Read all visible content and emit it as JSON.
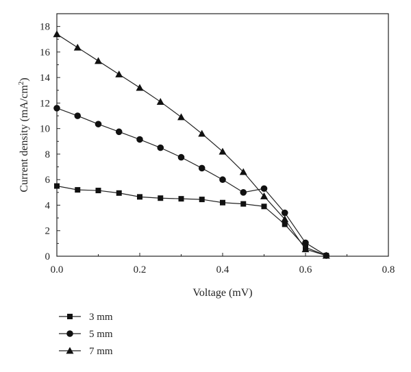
{
  "chart_data": {
    "type": "line",
    "title": "",
    "xlabel": "Voltage (mV)",
    "ylabel_main": "Current density (mA/cm",
    "ylabel_sup": "2",
    "ylabel_close": ")",
    "xlim": [
      0,
      0.8
    ],
    "ylim": [
      0,
      19
    ],
    "xticks": [
      0.0,
      0.2,
      0.4,
      0.6,
      0.8
    ],
    "xtick_labels": [
      "0.0",
      "0.2",
      "0.4",
      "0.6",
      "0.8"
    ],
    "yticks": [
      0,
      2,
      4,
      6,
      8,
      10,
      12,
      14,
      16,
      18
    ],
    "ytick_labels": [
      "0",
      "2",
      "4",
      "6",
      "8",
      "10",
      "12",
      "14",
      "16",
      "18"
    ],
    "grid": false,
    "legend_position": "bottom-left, below plot",
    "series": [
      {
        "name": "3 mm",
        "marker": "square",
        "x": [
          0,
          0.05,
          0.1,
          0.15,
          0.2,
          0.25,
          0.3,
          0.35,
          0.4,
          0.45,
          0.5,
          0.55,
          0.6,
          0.65
        ],
        "y": [
          5.5,
          5.2,
          5.15,
          4.95,
          4.65,
          4.55,
          4.5,
          4.45,
          4.2,
          4.1,
          3.9,
          2.5,
          0.7,
          0.05
        ]
      },
      {
        "name": "5 mm",
        "marker": "circle",
        "x": [
          0,
          0.05,
          0.1,
          0.15,
          0.2,
          0.25,
          0.3,
          0.35,
          0.4,
          0.45,
          0.5,
          0.55,
          0.6,
          0.65
        ],
        "y": [
          11.6,
          11.0,
          10.35,
          9.75,
          9.15,
          8.5,
          7.75,
          6.9,
          6.0,
          5.0,
          5.3,
          3.4,
          1.05,
          0.05
        ]
      },
      {
        "name": "7 mm",
        "marker": "triangle",
        "x": [
          0,
          0.05,
          0.1,
          0.15,
          0.2,
          0.25,
          0.3,
          0.35,
          0.4,
          0.45,
          0.5,
          0.55,
          0.6,
          0.65
        ],
        "y": [
          17.4,
          16.35,
          15.3,
          14.25,
          13.2,
          12.1,
          10.9,
          9.6,
          8.2,
          6.6,
          4.7,
          2.9,
          0.55,
          0.05
        ]
      }
    ]
  }
}
